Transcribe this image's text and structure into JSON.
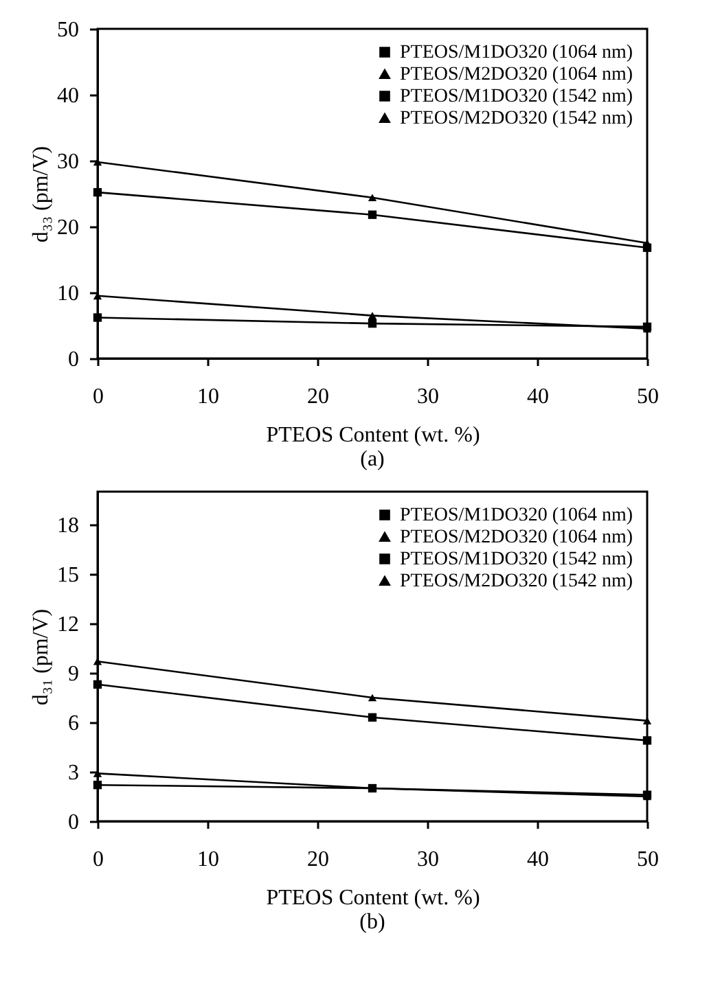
{
  "chart_data": [
    {
      "type": "line",
      "xlabel": "PTEOS Content (wt. %)",
      "ylabel": "d₃₃ (pm/V)",
      "x": [
        0,
        25,
        50
      ],
      "xlim": [
        0,
        50
      ],
      "xticks": [
        0,
        10,
        20,
        30,
        40,
        50
      ],
      "ylim": [
        0,
        50
      ],
      "yticks": [
        0,
        10,
        20,
        30,
        40,
        50
      ],
      "grid": false,
      "legend": "top right",
      "annotations": [
        "(a)"
      ],
      "series": [
        {
          "name": "PTEOS/M1DO320 (1064 nm)",
          "color": "#000000",
          "marker": "square",
          "values": [
            25.2,
            21.8,
            16.8
          ]
        },
        {
          "name": "PTEOS/M2DO320 (1064 nm)",
          "color": "#000000",
          "marker": "triangle",
          "values": [
            29.8,
            24.4,
            17.5
          ]
        },
        {
          "name": "PTEOS/M1DO320 (1542 nm)",
          "color": "#000000",
          "marker": "square",
          "values": [
            6.2,
            5.3,
            4.8
          ]
        },
        {
          "name": "PTEOS/M2DO320 (1542 nm)",
          "color": "#000000",
          "marker": "triangle",
          "values": [
            9.5,
            6.5,
            4.5
          ]
        }
      ]
    },
    {
      "type": "line",
      "xlabel": "PTEOS Content (wt. %)",
      "ylabel": "d₃₁ (pm/V)",
      "x": [
        0,
        25,
        50
      ],
      "xlim": [
        0,
        50
      ],
      "xticks": [
        0,
        10,
        20,
        30,
        40,
        50
      ],
      "ylim": [
        0,
        20
      ],
      "yticks": [
        0,
        3,
        6,
        9,
        12,
        15,
        18
      ],
      "grid": false,
      "legend": "top right",
      "annotations": [
        "(b)"
      ],
      "series": [
        {
          "name": "PTEOS/M1DO320 (1064 nm)",
          "color": "#000000",
          "marker": "square",
          "values": [
            8.3,
            6.3,
            4.9
          ]
        },
        {
          "name": "PTEOS/M2DO320 (1064 nm)",
          "color": "#000000",
          "marker": "triangle",
          "values": [
            9.7,
            7.5,
            6.1
          ]
        },
        {
          "name": "PTEOS/M1DO320 (1542 nm)",
          "color": "#000000",
          "marker": "square",
          "values": [
            2.2,
            2.0,
            1.6
          ]
        },
        {
          "name": "PTEOS/M2DO320 (1542 nm)",
          "color": "#000000",
          "marker": "triangle",
          "values": [
            2.9,
            2.0,
            1.5
          ]
        }
      ]
    }
  ]
}
